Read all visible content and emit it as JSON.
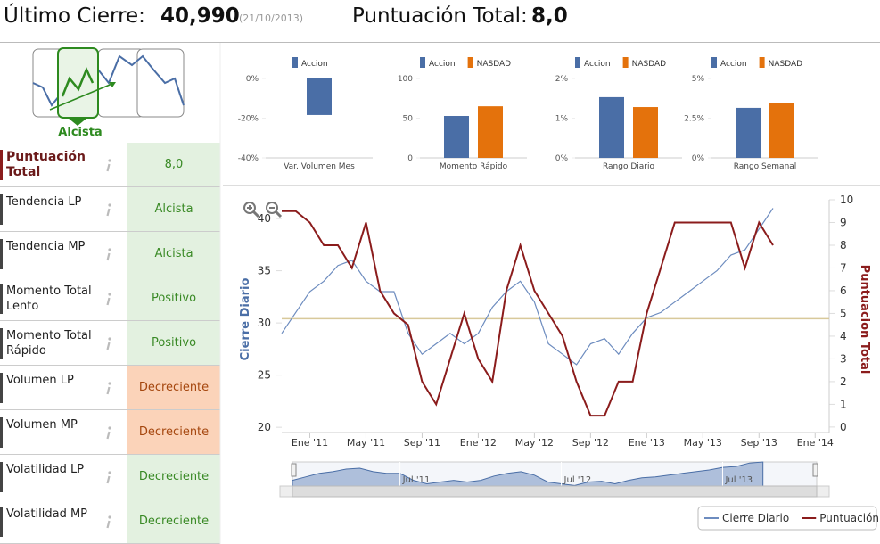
{
  "header": {
    "last_close_label": "Último Cierre:",
    "last_close": "40,990",
    "date": "(21/10/2013)",
    "score_label": "Puntuación Total:",
    "score": "8,0"
  },
  "trend_icon": {
    "label": "Alcista"
  },
  "table": {
    "rows": [
      {
        "label": "Puntuación Total",
        "value": "8,0",
        "color": "#e3f1e0"
      },
      {
        "label": "Tendencia LP",
        "value": "Alcista",
        "color": "#e3f1e0"
      },
      {
        "label": "Tendencia MP",
        "value": "Alcista",
        "color": "#e3f1e0"
      },
      {
        "label": "Momento Total Lento",
        "value": "Positivo",
        "color": "#e3f1e0"
      },
      {
        "label": "Momento Total Rápido",
        "value": "Positivo",
        "color": "#e3f1e0"
      },
      {
        "label": "Volumen LP",
        "value": "Decreciente",
        "color": "#fbd3b9"
      },
      {
        "label": "Volumen MP",
        "value": "Decreciente",
        "color": "#fbd3b9"
      },
      {
        "label": "Volatilidad LP",
        "value": "Decreciente",
        "color": "#e3f1e0"
      },
      {
        "label": "Volatilidad MP",
        "value": "Decreciente",
        "color": "#e3f1e0"
      }
    ]
  },
  "chart_data": [
    {
      "type": "bar",
      "xlabel": "Var. Volumen Mes",
      "ylim": [
        -40,
        0
      ],
      "yticks": [
        {
          "value": 0,
          "label": "0%"
        },
        {
          "value": -20,
          "label": "-20%"
        },
        {
          "value": -40,
          "label": "-40%"
        }
      ],
      "series": [
        {
          "name": "Accion",
          "color": "#4a6ea6",
          "values": [
            -18.4
          ]
        }
      ]
    },
    {
      "type": "bar",
      "xlabel": "Momento Rápido",
      "ylim": [
        0,
        100
      ],
      "yticks": [
        0,
        50,
        100
      ],
      "series": [
        {
          "name": "Accion",
          "color": "#4a6ea6",
          "values": [
            52.8
          ]
        },
        {
          "name": "NASDAD",
          "color": "#e4720c",
          "values": [
            65
          ]
        }
      ]
    },
    {
      "type": "bar",
      "xlabel": "Rango Diario",
      "ylim": [
        0,
        2
      ],
      "yticks": [
        {
          "value": 0,
          "label": "0%"
        },
        {
          "value": 1,
          "label": "1%"
        },
        {
          "value": 2,
          "label": "2%"
        }
      ],
      "series": [
        {
          "name": "Accion",
          "color": "#4a6ea6",
          "values": [
            1.53
          ]
        },
        {
          "name": "NASDAD",
          "color": "#e4720c",
          "values": [
            1.28
          ]
        }
      ]
    },
    {
      "type": "bar",
      "xlabel": "Rango Semanal",
      "ylim": [
        0,
        5
      ],
      "yticks": [
        {
          "value": 0,
          "label": "0%"
        },
        {
          "value": 2.5,
          "label": "2.5%"
        },
        {
          "value": 5,
          "label": "5%"
        }
      ],
      "series": [
        {
          "name": "Accion",
          "color": "#4a6ea6",
          "values": [
            3.15
          ]
        },
        {
          "name": "NASDAD",
          "color": "#e4720c",
          "values": [
            3.43
          ]
        }
      ]
    },
    {
      "type": "line",
      "ylabel": "Cierre Diario",
      "y2label": "Puntuacion Total",
      "xlim": [
        "2010-11",
        "2014-02"
      ],
      "xticks": [
        {
          "value": "2011-01",
          "label": "Ene '11"
        },
        {
          "value": "2011-05",
          "label": "May '11"
        },
        {
          "value": "2011-09",
          "label": "Sep '11"
        },
        {
          "value": "2012-01",
          "label": "Ene '12"
        },
        {
          "value": "2012-05",
          "label": "May '12"
        },
        {
          "value": "2012-09",
          "label": "Sep '12"
        },
        {
          "value": "2013-01",
          "label": "Ene '13"
        },
        {
          "value": "2013-05",
          "label": "May '13"
        },
        {
          "value": "2013-09",
          "label": "Sep '13"
        },
        {
          "value": "2014-01",
          "label": "Ene '14"
        }
      ],
      "ylim": [
        19.5,
        41.8
      ],
      "yticks": [
        20,
        25,
        30,
        35,
        40
      ],
      "y2lim": [
        -0.24,
        10
      ],
      "y2ticks": [
        0,
        1,
        2,
        3,
        4,
        5,
        6,
        7,
        8,
        9,
        10
      ],
      "hline": 30.4,
      "hline_color": "#d8c99a",
      "x": [
        "2010-11",
        "2010-12",
        "2011-01",
        "2011-02",
        "2011-03",
        "2011-04",
        "2011-05",
        "2011-06",
        "2011-07",
        "2011-08",
        "2011-09",
        "2011-10",
        "2011-11",
        "2011-12",
        "2012-01",
        "2012-02",
        "2012-03",
        "2012-04",
        "2012-05",
        "2012-06",
        "2012-07",
        "2012-08",
        "2012-09",
        "2012-10",
        "2012-11",
        "2012-12",
        "2013-01",
        "2013-02",
        "2013-03",
        "2013-04",
        "2013-05",
        "2013-06",
        "2013-07",
        "2013-08",
        "2013-09",
        "2013-10"
      ],
      "series": [
        {
          "name": "Cierre Diario",
          "color": "#6d8cbf",
          "values": [
            29,
            31,
            33,
            34,
            35.5,
            36,
            34,
            33,
            33,
            29,
            27,
            28,
            29,
            28,
            29,
            31.5,
            33,
            34,
            32,
            28,
            27,
            26,
            28,
            28.5,
            27,
            29,
            30.5,
            31,
            32,
            33,
            34,
            35,
            36.5,
            37,
            39,
            40.99
          ]
        },
        {
          "name": "Puntuación",
          "color": "#8b1c1c",
          "axis": "y2",
          "values": [
            9.5,
            9.5,
            9,
            8,
            8,
            7,
            9,
            6,
            5,
            4.5,
            2,
            1,
            3,
            5,
            3,
            2,
            6,
            8,
            6,
            5,
            4,
            2,
            0.5,
            0.5,
            2,
            2,
            5,
            7,
            9,
            9,
            9,
            9,
            9,
            7,
            9,
            8
          ]
        }
      ],
      "navigator_ticks": [
        {
          "value": "2011-07",
          "label": "Jul '11"
        },
        {
          "value": "2012-07",
          "label": "Jul '12"
        },
        {
          "value": "2013-07",
          "label": "Jul '13"
        }
      ],
      "legend": "bottom-right"
    }
  ]
}
